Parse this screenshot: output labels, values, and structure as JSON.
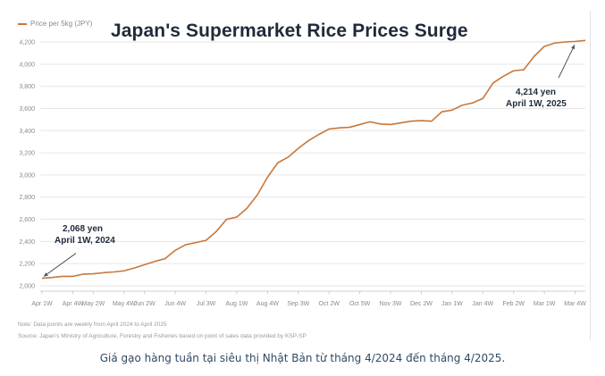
{
  "legend_label": "Price per 5kg (JPY)",
  "title": "Japan's Supermarket Rice Prices Surge",
  "note": "Note: Data points are weekly from April 2024 to April 2025",
  "source": "Source: Japan's Ministry of Agriculture, Forestry and Fisheries based on point of sales data provided by KSP-SP",
  "caption": "Giá gạo hàng tuần tại siêu thị Nhật Bản từ tháng 4/2024 đến tháng 4/2025.",
  "colors": {
    "line": "#c8773a",
    "grid": "#e6e6e6",
    "title": "#1f2b3a",
    "caption": "#2f4a63"
  },
  "chart_data": {
    "type": "line",
    "title": "Japan's Supermarket Rice Prices Surge",
    "ylabel": "Price per 5kg (JPY)",
    "xlabel": "",
    "ylim": [
      2000,
      4200
    ],
    "yticks": [
      2000,
      2200,
      2400,
      2600,
      2800,
      3000,
      3200,
      3400,
      3600,
      3800,
      4000,
      4200
    ],
    "yticklabels": [
      "2,000",
      "2,200",
      "2,400",
      "2,600",
      "2,800",
      "3,000",
      "3,200",
      "3,400",
      "3,600",
      "3,800",
      "4,000",
      "4,200"
    ],
    "xticks": [
      {
        "i": 0,
        "label": "Apr 1W"
      },
      {
        "i": 3,
        "label": "Apr 4W"
      },
      {
        "i": 5,
        "label": "May 2W"
      },
      {
        "i": 8,
        "label": "May 4W"
      },
      {
        "i": 10,
        "label": "Jun 2W"
      },
      {
        "i": 13,
        "label": "Jun 4W"
      },
      {
        "i": 16,
        "label": "Jul 3W"
      },
      {
        "i": 19,
        "label": "Aug 1W"
      },
      {
        "i": 22,
        "label": "Aug 4W"
      },
      {
        "i": 25,
        "label": "Sep 3W"
      },
      {
        "i": 28,
        "label": "Oct 2W"
      },
      {
        "i": 31,
        "label": "Oct 5W"
      },
      {
        "i": 34,
        "label": "Nov 3W"
      },
      {
        "i": 37,
        "label": "Dec 2W"
      },
      {
        "i": 40,
        "label": "Jan 1W"
      },
      {
        "i": 43,
        "label": "Jan 4W"
      },
      {
        "i": 46,
        "label": "Feb 2W"
      },
      {
        "i": 49,
        "label": "Mar 1W"
      },
      {
        "i": 52,
        "label": "Mar 4W"
      }
    ],
    "grid": true,
    "legend": "top-left",
    "series": [
      {
        "name": "Price per 5kg (JPY)",
        "values": [
          2068,
          2075,
          2085,
          2085,
          2105,
          2108,
          2118,
          2125,
          2135,
          2160,
          2190,
          2220,
          2245,
          2320,
          2370,
          2390,
          2410,
          2490,
          2600,
          2620,
          2700,
          2820,
          2980,
          3110,
          3160,
          3240,
          3310,
          3365,
          3415,
          3425,
          3430,
          3455,
          3480,
          3460,
          3455,
          3470,
          3485,
          3490,
          3485,
          3570,
          3585,
          3630,
          3650,
          3690,
          3830,
          3890,
          3940,
          3950,
          4070,
          4160,
          4190,
          4200,
          4205,
          4214
        ]
      }
    ],
    "annotations": [
      {
        "index": 0,
        "value": 2068,
        "lines": [
          "2,068 yen",
          "April 1W, 2024"
        ]
      },
      {
        "index": 53,
        "value": 4214,
        "lines": [
          "4,214 yen",
          "April 1W, 2025"
        ]
      }
    ]
  }
}
